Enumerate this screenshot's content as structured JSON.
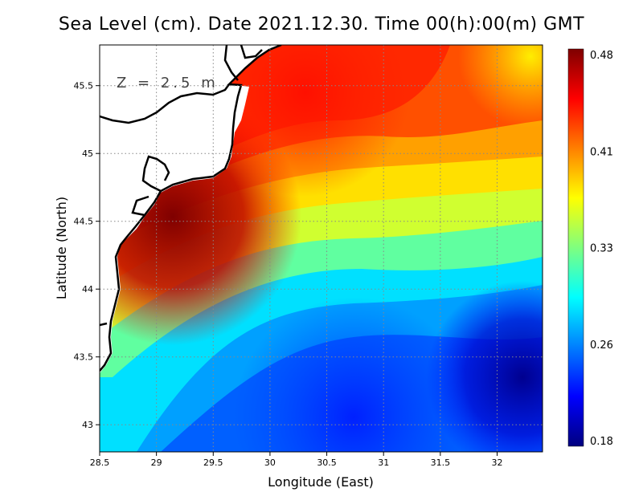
{
  "title": "Sea Level (cm). Date 2021.12.30. Time 00(h):00(m) GMT",
  "depth_label": "Z = 2.5 m",
  "chart_data": {
    "type": "heatmap",
    "variable": "Sea Level (cm)",
    "title": "Sea Level (cm). Date 2021.12.30. Time 00(h):00(m) GMT",
    "xlabel": "Longitude (East)",
    "ylabel": "Latitude (North)",
    "xlim": [
      28.5,
      32.4
    ],
    "ylim": [
      42.8,
      45.8
    ],
    "x_ticks": [
      28.5,
      29,
      29.5,
      30,
      30.5,
      31,
      31.5,
      32
    ],
    "x_tick_labels": [
      "28.5",
      "29",
      "29.5",
      "30",
      "30.5",
      "31",
      "31.5",
      "32"
    ],
    "y_ticks": [
      43,
      43.5,
      44,
      44.5,
      45,
      45.5
    ],
    "y_tick_labels": [
      "43",
      "43.5",
      "44",
      "44.5",
      "45",
      "45.5"
    ],
    "grid": true,
    "colorbar": {
      "min": 0.18,
      "max": 0.48,
      "ticks": [
        0.48,
        0.41,
        0.33,
        0.26,
        0.18
      ],
      "tick_labels": [
        "0.48",
        "0.41",
        "0.33",
        "0.26",
        "0.18"
      ],
      "colormap": [
        "#00007f",
        "#0000ff",
        "#007fff",
        "#00ffff",
        "#7fff7f",
        "#ffff00",
        "#ff7f00",
        "#ff0000",
        "#7f0000"
      ]
    },
    "field_summary": [
      {
        "region": "Coast near 29.2E 44.6N",
        "value": 0.48
      },
      {
        "region": "Northwest shelf 30.3E 45.4N",
        "value": 0.45
      },
      {
        "region": "Northeast 32.3E 45.7N",
        "value": 0.38
      },
      {
        "region": "Central 30.5E 44.3N",
        "value": 0.34
      },
      {
        "region": "South 30.5E 43.0N",
        "value": 0.23
      },
      {
        "region": "Southeast 32.2E 43.3N",
        "value": 0.18
      }
    ],
    "land_color": "#ffffff",
    "coastline_color": "#000000"
  }
}
